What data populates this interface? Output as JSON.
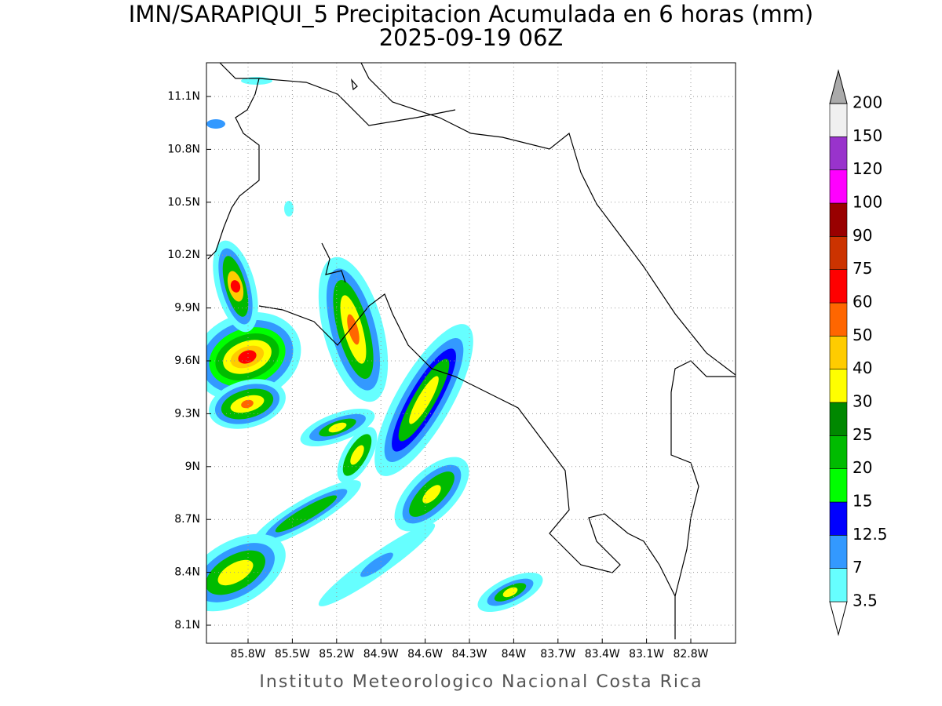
{
  "title": "IMN/SARAPIQUI_5 Precipitacion Acumulada en 6 horas (mm)",
  "subtitle": "2025-09-19 06Z",
  "map": {
    "lon_ticks": [
      "85.8W",
      "85.5W",
      "85.2W",
      "84.9W",
      "84.6W",
      "84.3W",
      "84W",
      "83.7W",
      "83.4W",
      "83.1W",
      "82.8W"
    ],
    "lat_ticks": [
      "8.1N",
      "8.4N",
      "8.7N",
      "9N",
      "9.3N",
      "9.6N",
      "9.9N",
      "10.2N",
      "10.5N",
      "10.8N",
      "11.1N"
    ]
  },
  "colorbar": {
    "levels": [
      3.5,
      7,
      12.5,
      15,
      20,
      25,
      30,
      40,
      50,
      60,
      75,
      90,
      100,
      120,
      150,
      200
    ],
    "colors": [
      "#ffffff",
      "#66ffff",
      "#3399ff",
      "#0000ff",
      "#00ff00",
      "#00bb00",
      "#008800",
      "#ffff00",
      "#ffcc00",
      "#ff6600",
      "#ff0000",
      "#cc3300",
      "#990000",
      "#ff00ff",
      "#9933cc",
      "#f0f0f0",
      "#aaaaaa"
    ]
  },
  "footer": "Instituto Meteorologico Nacional Costa Rica"
}
